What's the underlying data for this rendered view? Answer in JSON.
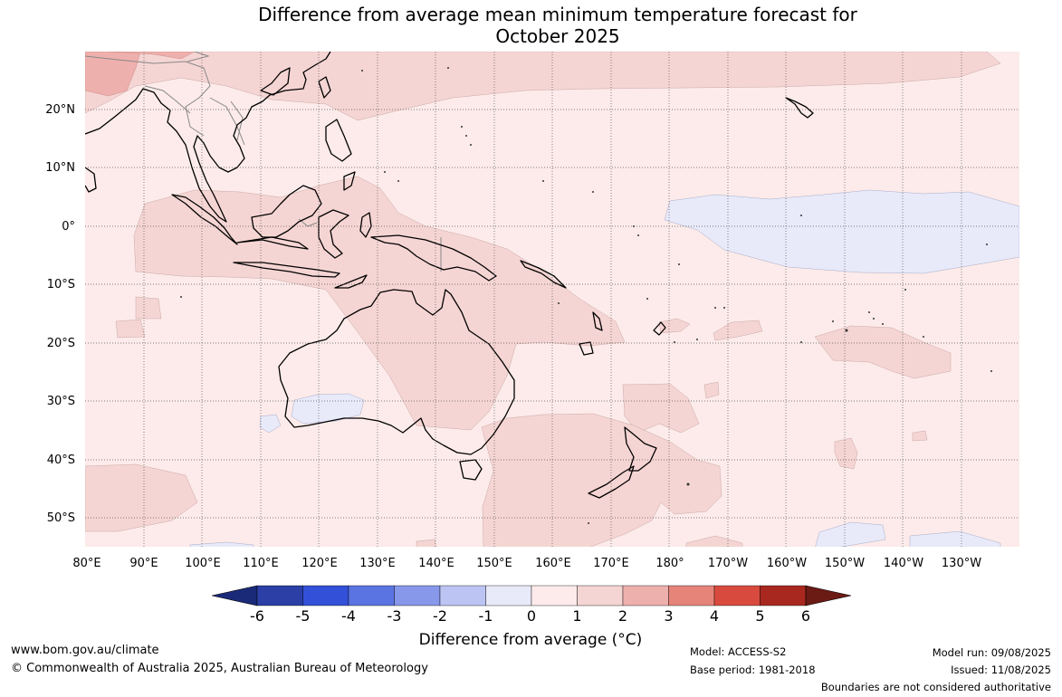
{
  "title": {
    "line1": "Difference from average mean minimum temperature forecast for",
    "line2": "October 2025"
  },
  "map": {
    "lon_ticks": [
      "80°E",
      "90°E",
      "100°E",
      "110°E",
      "120°E",
      "130°E",
      "140°E",
      "150°E",
      "160°E",
      "170°E",
      "180°",
      "170°W",
      "160°W",
      "150°W",
      "140°W",
      "130°W"
    ],
    "lat_ticks": [
      "20°N",
      "10°N",
      "0°",
      "10°S",
      "20°S",
      "30°S",
      "40°S",
      "50°S"
    ],
    "colors": {
      "background": "#fcebea",
      "warm_1_2": "#f5d5d3",
      "warm_2_3": "#eeb0ad",
      "cool_0_m1": "#e8eafa",
      "coast": "#000000",
      "borders": "#888888",
      "grid": "#555555"
    }
  },
  "colorbar": {
    "ticks": [
      "-6",
      "-5",
      "-4",
      "-3",
      "-2",
      "-1",
      "0",
      "1",
      "2",
      "3",
      "4",
      "5",
      "6"
    ],
    "colors": [
      "#1a2a78",
      "#2b3fa6",
      "#3350d8",
      "#5a74e2",
      "#8797e9",
      "#bcc4f3",
      "#e8eafa",
      "#fcebea",
      "#f5d5d3",
      "#eeb0ad",
      "#e6847a",
      "#d94a3e",
      "#a8281f",
      "#6b1a14"
    ],
    "label": "Difference from average (°C)"
  },
  "footer": {
    "url": "www.bom.gov.au/climate",
    "copyright": "© Commonwealth of Australia 2025, Australian Bureau of Meteorology",
    "model": "Model: ACCESS-S2",
    "base_period": "Base period: 1981-2018",
    "model_run": "Model run: 09/08/2025",
    "issued": "Issued: 11/08/2025",
    "disclaimer": "Boundaries are not considered authoritative"
  }
}
